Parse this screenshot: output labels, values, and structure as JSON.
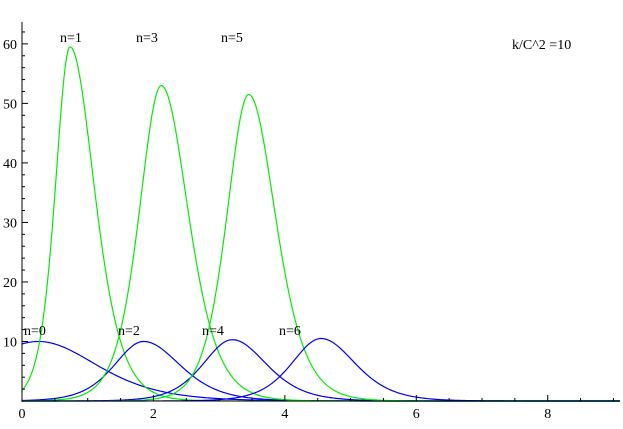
{
  "chart_data": {
    "type": "line",
    "title": "",
    "xlabel": "",
    "ylabel": "",
    "xlim": [
      0,
      9.1
    ],
    "ylim": [
      0,
      63
    ],
    "grid": false,
    "x_ticks": [
      0,
      2,
      4,
      6,
      8
    ],
    "x_tick_labels": [
      "0",
      "2",
      "4",
      "6",
      "8"
    ],
    "y_ticks": [
      10,
      20,
      30,
      40,
      50,
      60
    ],
    "y_tick_labels": [
      "10",
      "20",
      "30",
      "40",
      "50",
      "60"
    ],
    "annotation": "k/C^2 =10",
    "colors": {
      "odd": "#00ee00",
      "even": "#0000ee"
    },
    "series": [
      {
        "name": "n=0",
        "color": "#0000ee",
        "peak_x": 0.25,
        "peak_y": 10.0,
        "left_width": 1.2,
        "right_width": 1.2,
        "label": "n=0"
      },
      {
        "name": "n=1",
        "color": "#00ee00",
        "peak_x": 0.73,
        "peak_y": 59.5,
        "left_width": 0.3,
        "right_width": 0.5,
        "label": "n=1"
      },
      {
        "name": "n=2",
        "color": "#0000ee",
        "peak_x": 1.85,
        "peak_y": 10.0,
        "left_width": 0.6,
        "right_width": 0.75,
        "label": "n=2"
      },
      {
        "name": "n=3",
        "color": "#00ee00",
        "peak_x": 2.12,
        "peak_y": 53.0,
        "left_width": 0.45,
        "right_width": 0.55,
        "label": "n=3"
      },
      {
        "name": "n=4",
        "color": "#0000ee",
        "peak_x": 3.2,
        "peak_y": 10.3,
        "left_width": 0.6,
        "right_width": 0.7,
        "label": "n=4"
      },
      {
        "name": "n=5",
        "color": "#00ee00",
        "peak_x": 3.45,
        "peak_y": 51.5,
        "left_width": 0.45,
        "right_width": 0.55,
        "label": "n=5"
      },
      {
        "name": "n=6",
        "color": "#0000ee",
        "peak_x": 4.55,
        "peak_y": 10.5,
        "left_width": 0.6,
        "right_width": 0.7,
        "label": "n=6"
      }
    ]
  }
}
